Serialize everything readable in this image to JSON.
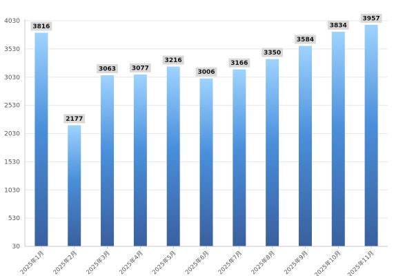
{
  "chart_data": {
    "type": "bar",
    "title": "",
    "xlabel": "",
    "ylabel": "",
    "categories": [
      "2025年1月",
      "2025年2月",
      "2025年3月",
      "2025年4月",
      "2025年5月",
      "2025年6月",
      "2025年7月",
      "2025年8月",
      "2025年9月",
      "2025年10月",
      "2025年11月"
    ],
    "values": [
      3816,
      2177,
      3063,
      3077,
      3216,
      3006,
      3166,
      3350,
      3584,
      3834,
      3957
    ],
    "data_labels": [
      "3816",
      "2177",
      "3063",
      "3077",
      "3216",
      "3006",
      "3166",
      "3350",
      "3584",
      "3834",
      "3957"
    ],
    "ylim": [
      30,
      4030
    ],
    "yticks": [
      30,
      530,
      1030,
      1530,
      2030,
      2530,
      3030,
      3530,
      4030
    ],
    "ytick_labels": [
      "30",
      "530",
      "1030",
      "1530",
      "2030",
      "2530",
      "3030",
      "3530",
      "4030"
    ],
    "grid": true,
    "legend": "none",
    "colors": {
      "bar_top": "#9fd3ff",
      "bar_mid": "#4a8fda",
      "bar_bottom": "#3a5f9e",
      "label_box": "#d9d9d9",
      "grid": "#e6e6e6",
      "axis": "#c9c9c9"
    }
  }
}
